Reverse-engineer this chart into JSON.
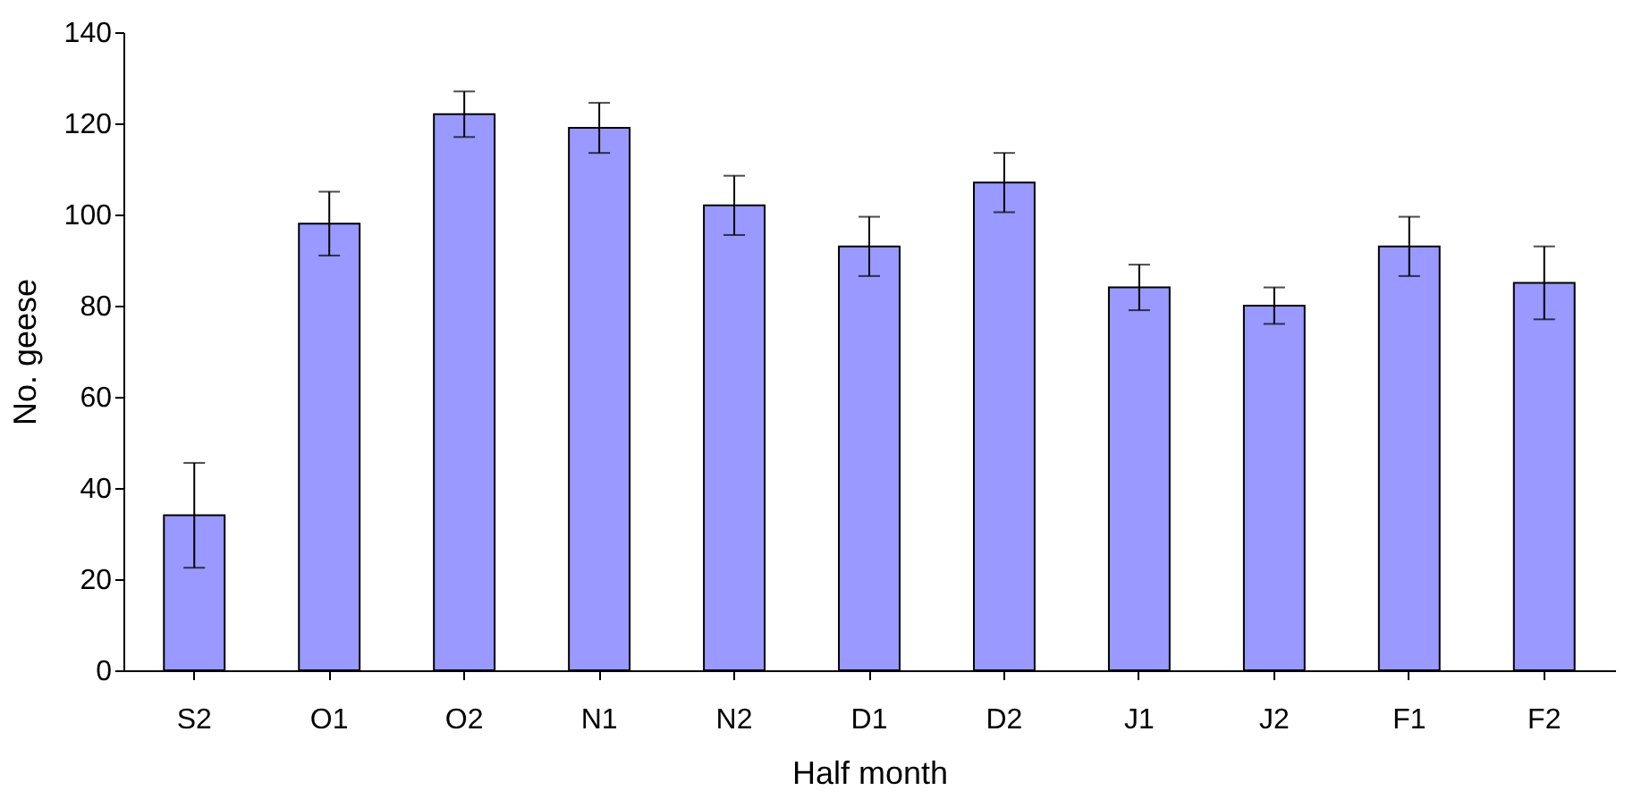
{
  "chart_data": {
    "type": "bar",
    "xlabel": "Half month",
    "ylabel": "No. geese",
    "categories": [
      "S2",
      "O1",
      "O2",
      "N1",
      "N2",
      "D1",
      "D2",
      "J1",
      "J2",
      "F1",
      "F2"
    ],
    "values": [
      34,
      98,
      122,
      119,
      102,
      93,
      107,
      84,
      80,
      93,
      85
    ],
    "errors": [
      11.5,
      7,
      5,
      5.5,
      6.5,
      6.5,
      6.5,
      5,
      4,
      6.5,
      8
    ],
    "color": "#9999ff",
    "ylim": [
      0,
      140
    ],
    "yticks": [
      0,
      20,
      40,
      60,
      80,
      100,
      120,
      140
    ],
    "grid": false
  }
}
